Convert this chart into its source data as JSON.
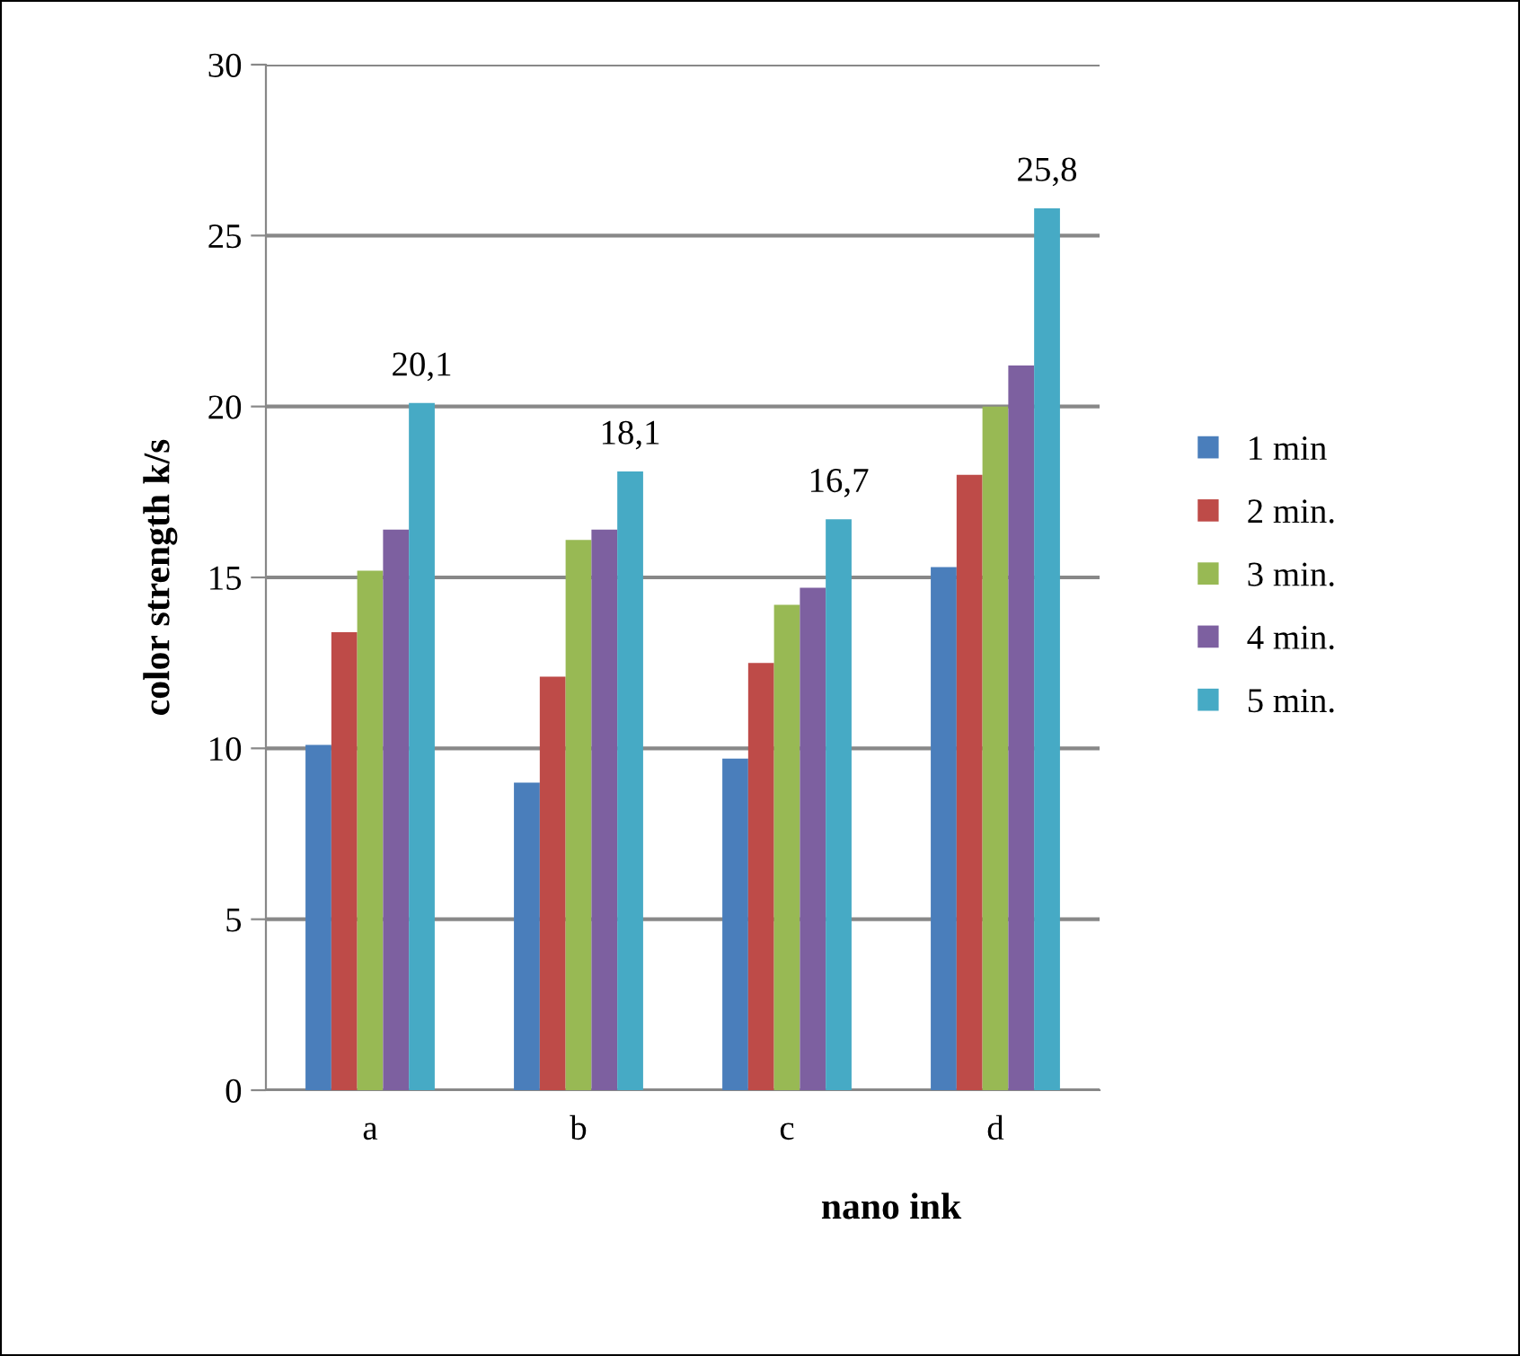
{
  "chart_data": {
    "type": "bar",
    "xlabel": "nano ink",
    "ylabel": "color strength k/s",
    "categories": [
      "a",
      "b",
      "c",
      "d"
    ],
    "series": [
      {
        "name": "1 min",
        "color": "#4a7ebb",
        "values": [
          10.1,
          9.0,
          9.7,
          15.3
        ]
      },
      {
        "name": "2 min.",
        "color": "#be4b48",
        "values": [
          13.4,
          12.1,
          12.5,
          18.0
        ]
      },
      {
        "name": "3 min.",
        "color": "#98b954",
        "values": [
          15.2,
          16.1,
          14.2,
          20.0
        ]
      },
      {
        "name": "4 min.",
        "color": "#7d60a0",
        "values": [
          16.4,
          16.4,
          14.7,
          21.2
        ]
      },
      {
        "name": "5 min.",
        "color": "#46aac5",
        "values": [
          20.1,
          18.1,
          16.7,
          25.8
        ],
        "value_labels": [
          "20,1",
          "18,1",
          "16,7",
          "25,8"
        ]
      }
    ],
    "ylim": [
      0,
      30
    ],
    "yticks": [
      0,
      5,
      10,
      15,
      20,
      25,
      30
    ],
    "grid": "y",
    "legend": "right"
  }
}
